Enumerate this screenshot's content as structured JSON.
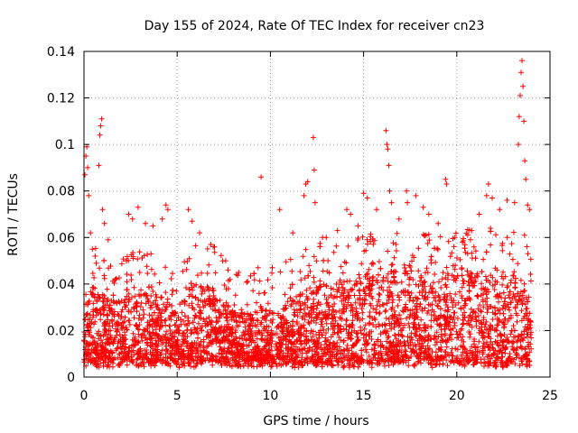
{
  "chart_data": {
    "type": "scatter",
    "title": "Day 155 of 2024, Rate Of TEC Index for receiver cn23",
    "xlabel": "GPS time / hours",
    "ylabel": "ROTI / TECUs",
    "xlim": [
      0,
      25
    ],
    "ylim": [
      0,
      0.14
    ],
    "xticks": [
      0,
      5,
      10,
      15,
      20,
      25
    ],
    "yticks": [
      0,
      0.02,
      0.04,
      0.06,
      0.08,
      0.1,
      0.12,
      0.14
    ],
    "xtick_labels": [
      "0",
      "5",
      "10",
      "15",
      "20",
      "25"
    ],
    "ytick_labels": [
      "0",
      "0.02",
      "0.04",
      "0.06",
      "0.08",
      "0.1",
      "0.12",
      "0.14"
    ],
    "grid": true,
    "marker": "+",
    "color": "#ff0000",
    "data_extent_hours": [
      0,
      24
    ],
    "envelope": [
      [
        0.0,
        0.03
      ],
      [
        0.5,
        0.04
      ],
      [
        1.0,
        0.034
      ],
      [
        1.5,
        0.034
      ],
      [
        2.0,
        0.033
      ],
      [
        2.5,
        0.037
      ],
      [
        3.0,
        0.036
      ],
      [
        3.5,
        0.036
      ],
      [
        4.0,
        0.036
      ],
      [
        4.5,
        0.034
      ],
      [
        5.0,
        0.028
      ],
      [
        5.5,
        0.04
      ],
      [
        6.0,
        0.04
      ],
      [
        6.5,
        0.04
      ],
      [
        7.0,
        0.038
      ],
      [
        7.5,
        0.033
      ],
      [
        8.0,
        0.028
      ],
      [
        8.5,
        0.028
      ],
      [
        9.0,
        0.027
      ],
      [
        9.5,
        0.03
      ],
      [
        10.0,
        0.028
      ],
      [
        10.5,
        0.03
      ],
      [
        11.0,
        0.034
      ],
      [
        11.5,
        0.036
      ],
      [
        12.0,
        0.038
      ],
      [
        12.5,
        0.04
      ],
      [
        13.0,
        0.04
      ],
      [
        13.5,
        0.042
      ],
      [
        14.0,
        0.042
      ],
      [
        14.5,
        0.044
      ],
      [
        15.0,
        0.045
      ],
      [
        15.5,
        0.046
      ],
      [
        16.0,
        0.048
      ],
      [
        16.5,
        0.046
      ],
      [
        17.0,
        0.046
      ],
      [
        17.5,
        0.046
      ],
      [
        18.0,
        0.044
      ],
      [
        18.5,
        0.044
      ],
      [
        19.0,
        0.044
      ],
      [
        19.5,
        0.044
      ],
      [
        20.0,
        0.044
      ],
      [
        20.5,
        0.046
      ],
      [
        21.0,
        0.045
      ],
      [
        21.5,
        0.045
      ],
      [
        22.0,
        0.047
      ],
      [
        22.5,
        0.045
      ],
      [
        23.0,
        0.044
      ],
      [
        23.5,
        0.046
      ],
      [
        24.0,
        0.045
      ]
    ],
    "outliers": [
      [
        0.05,
        0.087
      ],
      [
        0.1,
        0.095
      ],
      [
        0.15,
        0.099
      ],
      [
        0.2,
        0.09
      ],
      [
        0.25,
        0.078
      ],
      [
        0.35,
        0.062
      ],
      [
        0.45,
        0.055
      ],
      [
        0.6,
        0.052
      ],
      [
        0.8,
        0.091
      ],
      [
        0.85,
        0.104
      ],
      [
        0.9,
        0.108
      ],
      [
        0.95,
        0.111
      ],
      [
        1.0,
        0.072
      ],
      [
        1.1,
        0.066
      ],
      [
        1.3,
        0.059
      ],
      [
        2.4,
        0.07
      ],
      [
        2.6,
        0.068
      ],
      [
        2.9,
        0.073
      ],
      [
        3.3,
        0.066
      ],
      [
        3.7,
        0.065
      ],
      [
        4.2,
        0.068
      ],
      [
        4.4,
        0.074
      ],
      [
        4.5,
        0.072
      ],
      [
        5.6,
        0.072
      ],
      [
        5.8,
        0.067
      ],
      [
        6.2,
        0.062
      ],
      [
        6.8,
        0.057
      ],
      [
        7.6,
        0.05
      ],
      [
        8.3,
        0.045
      ],
      [
        9.5,
        0.086
      ],
      [
        10.1,
        0.047
      ],
      [
        10.5,
        0.072
      ],
      [
        11.2,
        0.062
      ],
      [
        11.8,
        0.078
      ],
      [
        11.9,
        0.083
      ],
      [
        12.0,
        0.084
      ],
      [
        12.3,
        0.103
      ],
      [
        12.35,
        0.089
      ],
      [
        12.4,
        0.075
      ],
      [
        12.8,
        0.06
      ],
      [
        13.0,
        0.06
      ],
      [
        13.6,
        0.063
      ],
      [
        14.1,
        0.072
      ],
      [
        14.3,
        0.07
      ],
      [
        14.7,
        0.065
      ],
      [
        15.0,
        0.079
      ],
      [
        15.2,
        0.077
      ],
      [
        15.7,
        0.072
      ],
      [
        16.2,
        0.106
      ],
      [
        16.25,
        0.1
      ],
      [
        16.3,
        0.098
      ],
      [
        16.35,
        0.091
      ],
      [
        16.4,
        0.08
      ],
      [
        16.5,
        0.075
      ],
      [
        16.9,
        0.068
      ],
      [
        17.3,
        0.08
      ],
      [
        17.35,
        0.075
      ],
      [
        17.8,
        0.078
      ],
      [
        18.2,
        0.073
      ],
      [
        18.5,
        0.07
      ],
      [
        19.0,
        0.066
      ],
      [
        19.4,
        0.085
      ],
      [
        19.45,
        0.083
      ],
      [
        19.9,
        0.06
      ],
      [
        20.3,
        0.058
      ],
      [
        20.8,
        0.063
      ],
      [
        21.2,
        0.07
      ],
      [
        21.6,
        0.078
      ],
      [
        21.7,
        0.083
      ],
      [
        21.9,
        0.077
      ],
      [
        22.3,
        0.072
      ],
      [
        22.7,
        0.076
      ],
      [
        23.1,
        0.075
      ],
      [
        23.3,
        0.1
      ],
      [
        23.35,
        0.112
      ],
      [
        23.4,
        0.121
      ],
      [
        23.45,
        0.131
      ],
      [
        23.5,
        0.136
      ],
      [
        23.55,
        0.125
      ],
      [
        23.6,
        0.11
      ],
      [
        23.65,
        0.093
      ],
      [
        23.7,
        0.085
      ],
      [
        23.8,
        0.074
      ],
      [
        23.9,
        0.072
      ]
    ]
  }
}
